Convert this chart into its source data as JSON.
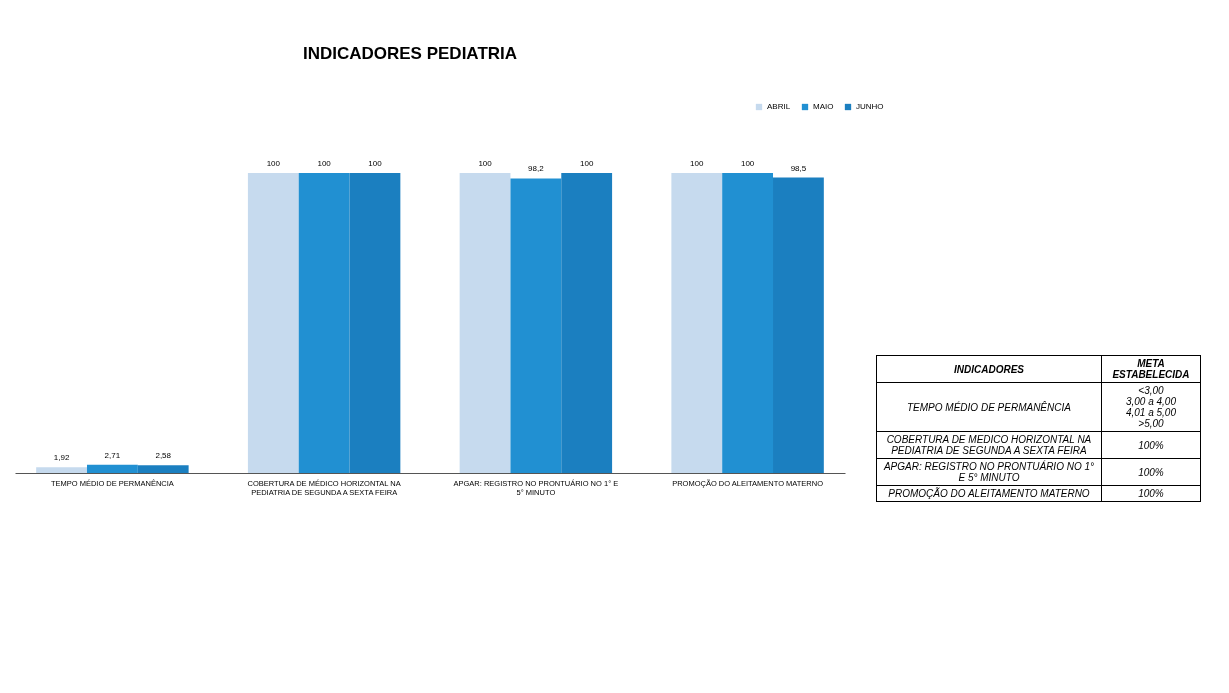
{
  "chart_data": {
    "type": "bar",
    "title": "INDICADORES PEDIATRIA",
    "categories": [
      "TEMPO MÉDIO DE PERMANÊNCIA",
      "COBERTURA DE MÉDICO HORIZONTAL NA PEDIATRIA DE SEGUNDA A SEXTA FEIRA",
      "APGAR: REGISTRO NO PRONTUÁRIO NO 1° E 5° MINUTO",
      "PROMOÇÃO DO ALEITAMENTO MATERNO"
    ],
    "series": [
      {
        "name": "ABRIL",
        "color": "#c6daee",
        "values": [
          1.92,
          100,
          100,
          100
        ],
        "value_labels": [
          "1,92",
          "100",
          "100",
          "100"
        ]
      },
      {
        "name": "MAIO",
        "color": "#2190d2",
        "values": [
          2.71,
          100,
          98.2,
          100
        ],
        "value_labels": [
          "2,71",
          "100",
          "98,2",
          "100"
        ]
      },
      {
        "name": "JUNHO",
        "color": "#1b7fc0",
        "values": [
          2.58,
          100,
          100,
          98.5
        ],
        "value_labels": [
          "2,58",
          "100",
          "100",
          "98,5"
        ]
      }
    ],
    "legend": "top right",
    "grid": false,
    "annotations": [
      "INDICADORES",
      "META ESTABELECIDA",
      "TEMPO MÉDIO DE PERMANÊNCIA",
      "<3,00\n3,00 a 4,00\n4,01 a 5,00\n>5,00",
      "COBERTURA DE MEDICO HORIZONTAL NA PEDIATRIA DE SEGUNDA A SEXTA FEIRA",
      "100%",
      "APGAR: REGISTRO NO PRONTUÁRIO NO 1° E 5° MINUTO",
      "100%",
      "PROMOÇÃO DO ALEITAMENTO MATERNO",
      "100%"
    ]
  }
}
